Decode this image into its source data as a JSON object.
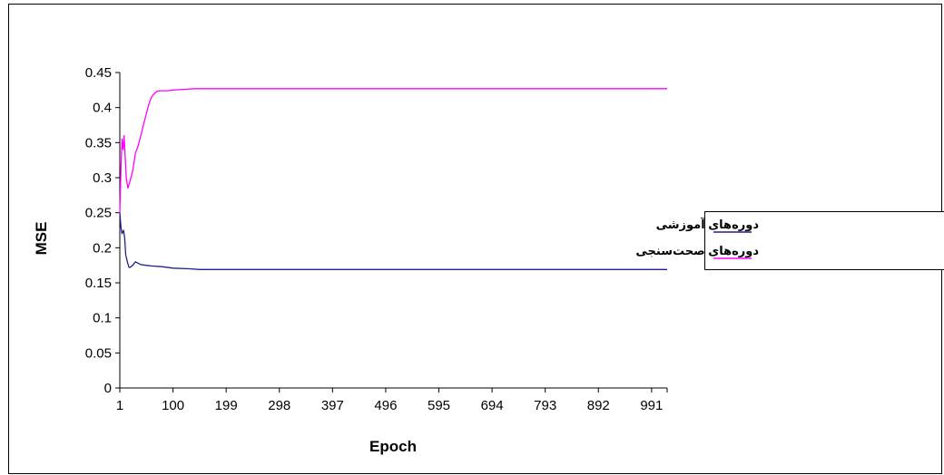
{
  "chart_data": {
    "type": "line",
    "title": "",
    "xlabel": "Epoch",
    "ylabel": "MSE",
    "xlim": [
      1,
      1020
    ],
    "ylim": [
      0,
      0.45
    ],
    "x_tick_labels": [
      "1",
      "100",
      "199",
      "298",
      "397",
      "496",
      "595",
      "694",
      "793",
      "892",
      "991"
    ],
    "y_tick_labels": [
      "0",
      "0.05",
      "0.1",
      "0.15",
      "0.2",
      "0.25",
      "0.3",
      "0.35",
      "0.4",
      "0.45"
    ],
    "grid": false,
    "legend_position": "right",
    "series": [
      {
        "name": "دوره‌های آموزشی",
        "color": "#1f1f8f",
        "x": [
          1,
          3,
          5,
          8,
          10,
          12,
          15,
          18,
          20,
          25,
          30,
          40,
          50,
          60,
          80,
          100,
          130,
          150,
          200,
          300,
          400,
          500,
          600,
          700,
          800,
          900,
          1000,
          1020
        ],
        "y": [
          0.25,
          0.23,
          0.22,
          0.225,
          0.215,
          0.19,
          0.18,
          0.172,
          0.172,
          0.175,
          0.18,
          0.176,
          0.175,
          0.174,
          0.173,
          0.171,
          0.17,
          0.169,
          0.169,
          0.169,
          0.169,
          0.169,
          0.169,
          0.169,
          0.169,
          0.169,
          0.169,
          0.169
        ]
      },
      {
        "name": "دوره‌های صحت‌سنجی",
        "color": "#ff00ff",
        "x": [
          1,
          3,
          5,
          7,
          9,
          11,
          13,
          16,
          20,
          25,
          30,
          35,
          40,
          45,
          50,
          55,
          60,
          65,
          70,
          75,
          80,
          90,
          100,
          120,
          140,
          200,
          300,
          400,
          500,
          600,
          700,
          800,
          900,
          1000,
          1020
        ],
        "y": [
          0.25,
          0.31,
          0.355,
          0.34,
          0.36,
          0.33,
          0.3,
          0.285,
          0.295,
          0.31,
          0.335,
          0.345,
          0.36,
          0.375,
          0.39,
          0.405,
          0.415,
          0.42,
          0.423,
          0.424,
          0.424,
          0.424,
          0.425,
          0.426,
          0.427,
          0.427,
          0.427,
          0.427,
          0.427,
          0.427,
          0.427,
          0.427,
          0.427,
          0.427,
          0.427
        ]
      }
    ]
  }
}
